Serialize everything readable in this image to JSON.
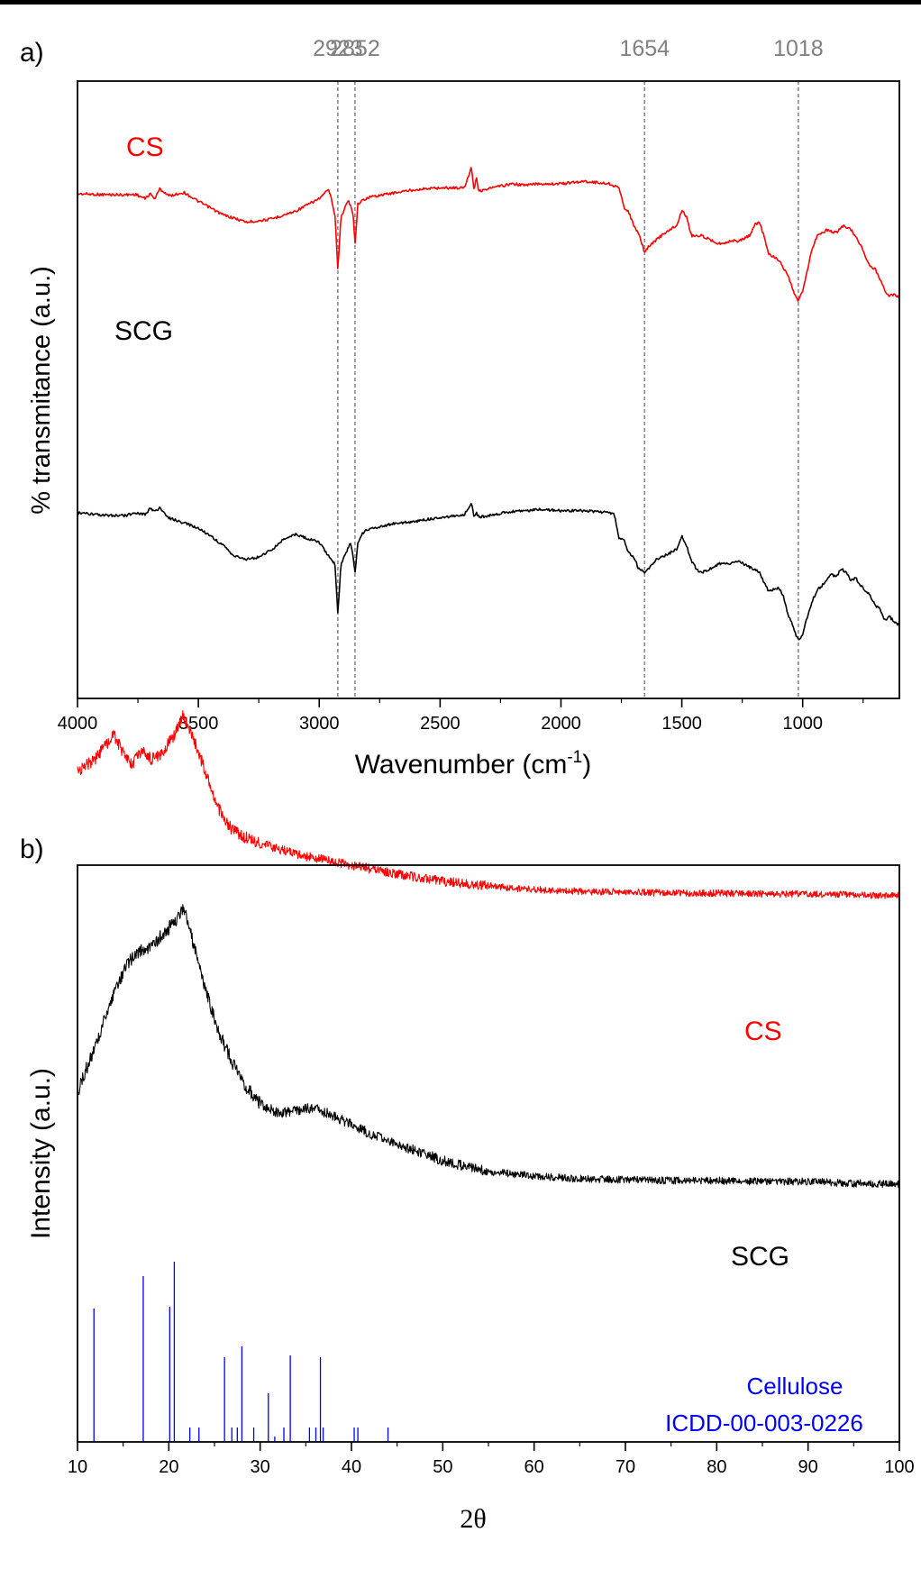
{
  "chart_data": [
    {
      "panel_label": "a)",
      "type": "line",
      "xlabel_main": "Wavenumber (cm",
      "xlabel_sup": "-1",
      "xlabel_end": ")",
      "ylabel": "% transmitance (a.u.)",
      "xlim": [
        4000,
        600
      ],
      "xticks": [
        "4000",
        "3500",
        "3000",
        "2500",
        "2000",
        "1500",
        "1000"
      ],
      "ref_lines": [
        {
          "value": 2923,
          "label": "2923"
        },
        {
          "value": 2852,
          "label": "2852"
        },
        {
          "value": 1654,
          "label": "1654"
        },
        {
          "value": 1018,
          "label": "1018"
        }
      ],
      "series": [
        {
          "name": "CS",
          "color": "#ff0000",
          "x": [
            4000,
            3900,
            3800,
            3760,
            3720,
            3700,
            3680,
            3660,
            3620,
            3560,
            3500,
            3400,
            3300,
            3200,
            3100,
            3000,
            2960,
            2935,
            2923,
            2910,
            2880,
            2860,
            2852,
            2840,
            2800,
            2700,
            2600,
            2500,
            2400,
            2370,
            2360,
            2350,
            2340,
            2300,
            2200,
            2150,
            2100,
            2000,
            1900,
            1800,
            1760,
            1740,
            1720,
            1700,
            1680,
            1660,
            1654,
            1640,
            1600,
            1560,
            1520,
            1500,
            1480,
            1460,
            1420,
            1380,
            1340,
            1300,
            1260,
            1220,
            1200,
            1180,
            1160,
            1140,
            1100,
            1060,
            1040,
            1018,
            1000,
            980,
            960,
            940,
            900,
            860,
            830,
            800,
            760,
            740,
            720,
            700,
            680,
            660,
            640,
            620,
            600
          ],
          "y": [
            10.0,
            10.3,
            10.4,
            10.2,
            11.8,
            10.0,
            11.8,
            8.2,
            10.8,
            9.5,
            12.8,
            17.7,
            20.5,
            19.4,
            16.5,
            11.8,
            8.4,
            17.7,
            37.9,
            18.6,
            12.4,
            17.0,
            28.9,
            13.6,
            11.4,
            9.8,
            8.4,
            7.8,
            7.8,
            0.0,
            8.6,
            3.6,
            9.1,
            8.1,
            6.3,
            6.9,
            6.3,
            6.3,
            5.4,
            6.3,
            7.8,
            14.9,
            16.6,
            21.6,
            24.6,
            29.8,
            31.8,
            29.8,
            26.6,
            23.9,
            21.6,
            16.1,
            18.6,
            25.5,
            25.5,
            27.1,
            28.6,
            27.4,
            27.4,
            25.5,
            21.6,
            20.5,
            25.5,
            32.3,
            34.4,
            40.6,
            45.8,
            50.0,
            45.8,
            37.9,
            30.3,
            25.5,
            23.4,
            24.4,
            21.6,
            23.4,
            28.9,
            33.3,
            36.9,
            37.9,
            41.4,
            45.8,
            48.0,
            47.0,
            48.7
          ]
        },
        {
          "name": "SCG",
          "color": "#000000",
          "x": [
            4000,
            3900,
            3800,
            3760,
            3720,
            3700,
            3680,
            3660,
            3620,
            3560,
            3500,
            3440,
            3400,
            3350,
            3300,
            3260,
            3200,
            3150,
            3100,
            3000,
            2960,
            2935,
            2923,
            2910,
            2890,
            2870,
            2860,
            2852,
            2840,
            2820,
            2800,
            2700,
            2600,
            2500,
            2400,
            2370,
            2360,
            2350,
            2340,
            2300,
            2200,
            2150,
            2100,
            2000,
            1900,
            1800,
            1780,
            1760,
            1740,
            1720,
            1700,
            1680,
            1660,
            1654,
            1640,
            1600,
            1560,
            1520,
            1500,
            1480,
            1460,
            1440,
            1420,
            1380,
            1340,
            1300,
            1260,
            1220,
            1180,
            1160,
            1140,
            1100,
            1080,
            1060,
            1040,
            1030,
            1018,
            1000,
            980,
            960,
            940,
            920,
            900,
            880,
            860,
            840,
            820,
            800,
            780,
            760,
            740,
            720,
            700,
            680,
            660,
            640,
            620,
            600
          ],
          "y": [
            63.0,
            64.0,
            64.0,
            63.0,
            63.5,
            61.6,
            62.2,
            61.4,
            65.0,
            66.8,
            68.7,
            72.1,
            75.0,
            79.1,
            80.1,
            79.7,
            76.9,
            73.0,
            71.0,
            74.0,
            79.1,
            82.0,
            100.0,
            82.0,
            78.1,
            74.0,
            79.1,
            85.0,
            74.0,
            70.6,
            69.1,
            67.1,
            66.2,
            64.7,
            63.9,
            59.0,
            65.0,
            62.6,
            64.7,
            64.0,
            62.4,
            62.4,
            61.6,
            62.2,
            62.2,
            62.9,
            63.3,
            72.5,
            72.5,
            77.9,
            79.0,
            83.3,
            84.9,
            85.5,
            84.0,
            79.9,
            78.4,
            76.4,
            71.6,
            75.5,
            80.6,
            84.0,
            85.3,
            83.7,
            81.7,
            81.7,
            81.1,
            83.2,
            84.9,
            88.9,
            92.1,
            90.8,
            93.6,
            101.0,
            104.7,
            107.8,
            109.9,
            108.2,
            101.0,
            95.6,
            91.4,
            90.0,
            87.5,
            85.8,
            86.6,
            83.5,
            85.3,
            88.0,
            87.1,
            89.9,
            91.8,
            93.6,
            97.4,
            98.7,
            102.9,
            101.5,
            103.4,
            104.5
          ]
        }
      ]
    },
    {
      "panel_label": "b)",
      "type": "line",
      "xlabel": "2θ",
      "ylabel": "Intensity (a.u.)",
      "xlim": [
        10,
        100
      ],
      "xticks": [
        "10",
        "20",
        "30",
        "40",
        "50",
        "60",
        "70",
        "80",
        "90",
        "100"
      ],
      "series": [
        {
          "name": "CS",
          "color": "#ff0000",
          "x": [
            10,
            12,
            14,
            15,
            16,
            17,
            18,
            19,
            20,
            21,
            21.5,
            22,
            23,
            24,
            25,
            26,
            27,
            28,
            30,
            32,
            35,
            40,
            45,
            50,
            55,
            60,
            65,
            70,
            75,
            80,
            85,
            90,
            95,
            100
          ],
          "y": [
            855,
            842,
            815,
            835,
            848,
            832,
            842,
            838,
            825,
            808,
            792,
            802,
            828,
            855,
            888,
            908,
            922,
            928,
            936,
            942,
            950,
            960,
            970,
            978,
            983,
            987,
            989,
            990,
            991,
            991,
            992,
            992,
            993,
            994
          ]
        },
        {
          "name": "SCG",
          "color": "#000000",
          "x": [
            10,
            11,
            12,
            13,
            14,
            15,
            16,
            17,
            18,
            19,
            20,
            21,
            21.5,
            22,
            23,
            24,
            25,
            26,
            27,
            28,
            30,
            32,
            34,
            35,
            36,
            38,
            40,
            42,
            45,
            48,
            50,
            55,
            60,
            65,
            70,
            75,
            80,
            85,
            90,
            95,
            100
          ],
          "y": [
            1212,
            1185,
            1160,
            1130,
            1100,
            1080,
            1062,
            1055,
            1050,
            1040,
            1030,
            1018,
            1008,
            1020,
            1058,
            1098,
            1130,
            1158,
            1180,
            1200,
            1225,
            1235,
            1233,
            1230,
            1230,
            1238,
            1248,
            1258,
            1270,
            1280,
            1288,
            1300,
            1305,
            1308,
            1309,
            1310,
            1310,
            1311,
            1311,
            1313,
            1314
          ]
        }
      ],
      "reference": {
        "name_line1": "Cellulose",
        "name_line2": "ICDD-00-003-0226",
        "color": "#0000ff",
        "peaks": [
          {
            "x": 11.8,
            "h": 0.74
          },
          {
            "x": 17.2,
            "h": 0.92
          },
          {
            "x": 20.1,
            "h": 0.75
          },
          {
            "x": 20.6,
            "h": 1.0
          },
          {
            "x": 22.3,
            "h": 0.08
          },
          {
            "x": 23.3,
            "h": 0.08
          },
          {
            "x": 26.1,
            "h": 0.47
          },
          {
            "x": 26.9,
            "h": 0.08
          },
          {
            "x": 27.5,
            "h": 0.08
          },
          {
            "x": 28.0,
            "h": 0.53
          },
          {
            "x": 29.3,
            "h": 0.08
          },
          {
            "x": 30.9,
            "h": 0.27
          },
          {
            "x": 31.6,
            "h": 0.03
          },
          {
            "x": 32.6,
            "h": 0.08
          },
          {
            "x": 33.3,
            "h": 0.48
          },
          {
            "x": 35.4,
            "h": 0.08
          },
          {
            "x": 36.1,
            "h": 0.08
          },
          {
            "x": 36.6,
            "h": 0.47
          },
          {
            "x": 36.9,
            "h": 0.08
          },
          {
            "x": 40.3,
            "h": 0.08
          },
          {
            "x": 40.7,
            "h": 0.08
          },
          {
            "x": 44.0,
            "h": 0.08
          }
        ]
      }
    }
  ],
  "labels": {
    "a_cs": "CS",
    "a_scg": "SCG",
    "b_cs": "CS",
    "b_scg": "SCG"
  }
}
